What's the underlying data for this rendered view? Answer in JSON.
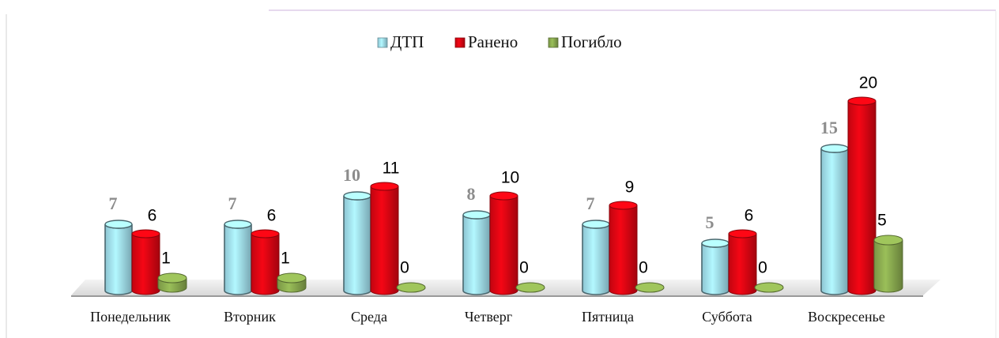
{
  "chart_data": {
    "type": "bar",
    "categories": [
      "Понедельник",
      "Вторник",
      "Среда",
      "Четверг",
      "Пятница",
      "Суббота",
      "Воскресенье"
    ],
    "series": [
      {
        "name": "ДТП",
        "color": "#a6e6f7",
        "values": [
          7,
          7,
          10,
          8,
          7,
          5,
          15
        ]
      },
      {
        "name": "Ранено",
        "color": "#e30613",
        "values": [
          6,
          6,
          11,
          10,
          9,
          6,
          20
        ]
      },
      {
        "name": "Погибло",
        "color": "#8fb152",
        "values": [
          1,
          1,
          0,
          0,
          0,
          0,
          5
        ]
      }
    ],
    "legend": "top"
  }
}
